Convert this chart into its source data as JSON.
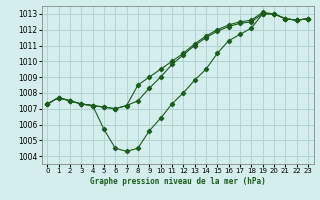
{
  "title": "Graphe pression niveau de la mer (hPa)",
  "bg_color": "#d4eeed",
  "grid_color": "#b0d4d0",
  "line_color": "#1a5c1a",
  "xlim": [
    -0.5,
    23.5
  ],
  "ylim": [
    1003.5,
    1013.5
  ],
  "xticks": [
    0,
    1,
    2,
    3,
    4,
    5,
    6,
    7,
    8,
    9,
    10,
    11,
    12,
    13,
    14,
    15,
    16,
    17,
    18,
    19,
    20,
    21,
    22,
    23
  ],
  "yticks": [
    1004,
    1005,
    1006,
    1007,
    1008,
    1009,
    1010,
    1011,
    1012,
    1013
  ],
  "series_low": {
    "x": [
      0,
      1,
      2,
      3,
      4,
      5,
      6,
      7,
      8,
      9,
      10,
      11,
      12,
      13,
      14,
      15,
      16,
      17,
      18,
      19,
      20,
      21,
      22,
      23
    ],
    "y": [
      1007.3,
      1007.7,
      1007.5,
      1007.3,
      1007.2,
      1005.7,
      1004.5,
      1004.3,
      1004.5,
      1005.6,
      1006.4,
      1007.3,
      1008.0,
      1008.8,
      1009.5,
      1010.5,
      1011.3,
      1011.7,
      1012.1,
      1013.0,
      1013.0,
      1012.7,
      1012.6,
      1012.7
    ]
  },
  "series_mid": {
    "x": [
      0,
      1,
      2,
      3,
      4,
      5,
      6,
      7,
      8,
      9,
      10,
      11,
      12,
      13,
      14,
      15,
      16,
      17,
      18,
      19,
      20,
      21,
      22,
      23
    ],
    "y": [
      1007.3,
      1007.7,
      1007.5,
      1007.3,
      1007.2,
      1007.1,
      1007.0,
      1007.2,
      1007.5,
      1008.3,
      1009.0,
      1009.8,
      1010.4,
      1011.0,
      1011.5,
      1011.9,
      1012.2,
      1012.4,
      1012.5,
      1013.0,
      1013.0,
      1012.7,
      1012.6,
      1012.7
    ]
  },
  "series_high": {
    "x": [
      0,
      1,
      2,
      3,
      4,
      5,
      6,
      7,
      8,
      9,
      10,
      11,
      12,
      13,
      14,
      15,
      16,
      17,
      18,
      19,
      20,
      21,
      22,
      23
    ],
    "y": [
      1007.3,
      1007.7,
      1007.5,
      1007.3,
      1007.2,
      1007.1,
      1007.0,
      1007.2,
      1008.5,
      1009.0,
      1009.5,
      1010.0,
      1010.5,
      1011.1,
      1011.6,
      1012.0,
      1012.3,
      1012.5,
      1012.6,
      1013.1,
      1013.0,
      1012.7,
      1012.6,
      1012.7
    ]
  }
}
